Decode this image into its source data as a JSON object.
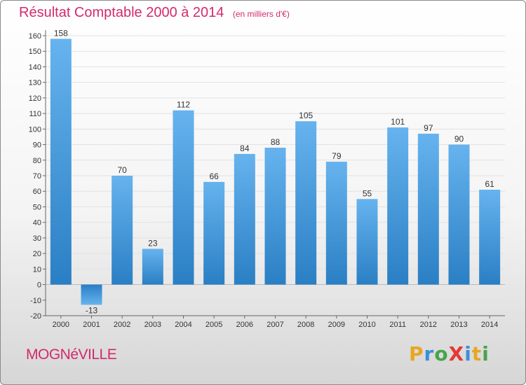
{
  "title": "Résultat Comptable 2000 à 2014",
  "unit_note": "(en milliers d'€)",
  "commune": "MOGNéVILLE",
  "brand": {
    "text": "ProXiti",
    "letters": [
      {
        "ch": "P",
        "color": "#e8a623"
      },
      {
        "ch": "r",
        "color": "#3b8fd8"
      },
      {
        "ch": "o",
        "color": "#47a44b"
      },
      {
        "ch": "X",
        "color": "#e53935"
      },
      {
        "ch": "i",
        "color": "#3b8fd8"
      },
      {
        "ch": "t",
        "color": "#e8a623"
      },
      {
        "ch": "i",
        "color": "#47a44b"
      }
    ]
  },
  "colors": {
    "title": "#d32a6b",
    "bar_light": "#66b3ee",
    "bar_dark": "#2a7fc4",
    "grid": "#e2e2e2",
    "axis": "#666666"
  },
  "chart_data": {
    "type": "bar",
    "title": "Résultat Comptable 2000 à 2014",
    "xlabel": "",
    "ylabel": "",
    "categories": [
      "2000",
      "2001",
      "2002",
      "2003",
      "2004",
      "2005",
      "2006",
      "2007",
      "2008",
      "2009",
      "2010",
      "2011",
      "2012",
      "2013",
      "2014"
    ],
    "values": [
      158,
      -13,
      70,
      23,
      112,
      66,
      84,
      88,
      105,
      79,
      55,
      101,
      97,
      90,
      61
    ],
    "ylim": [
      -20,
      160
    ],
    "yticks": [
      -20,
      -10,
      0,
      10,
      20,
      30,
      40,
      50,
      60,
      70,
      80,
      90,
      100,
      110,
      120,
      130,
      140,
      150,
      160
    ],
    "grid": true,
    "legend": "none"
  }
}
